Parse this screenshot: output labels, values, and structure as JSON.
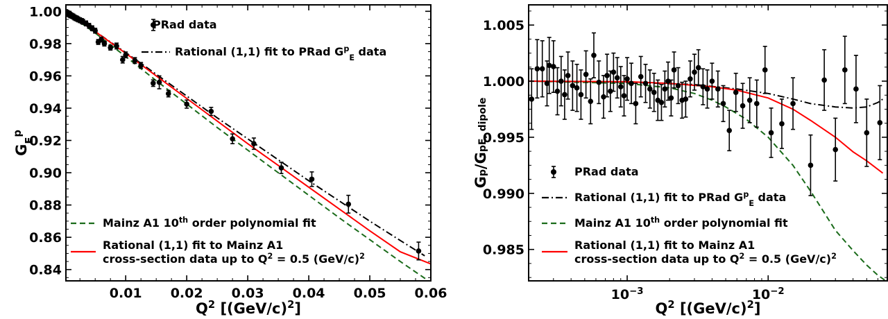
{
  "chart_data": [
    {
      "type": "scatter",
      "xlabel": "Q² [(GeV/c)²]",
      "ylabel": "G_E^p",
      "xscale": "linear",
      "xlim": [
        0.0002,
        0.06
      ],
      "ylim": [
        0.833,
        1.004
      ],
      "xticks": [
        {
          "v": 0.01,
          "label": "0.01"
        },
        {
          "v": 0.02,
          "label": "0.02"
        },
        {
          "v": 0.03,
          "label": "0.03"
        },
        {
          "v": 0.04,
          "label": "0.04"
        },
        {
          "v": 0.05,
          "label": "0.05"
        },
        {
          "v": 0.06,
          "label": "0.06"
        }
      ],
      "yticks": [
        {
          "v": 0.84,
          "label": "0.84"
        },
        {
          "v": 0.86,
          "label": "0.86"
        },
        {
          "v": 0.88,
          "label": "0.88"
        },
        {
          "v": 0.9,
          "label": "0.90"
        },
        {
          "v": 0.92,
          "label": "0.92"
        },
        {
          "v": 0.94,
          "label": "0.94"
        },
        {
          "v": 0.96,
          "label": "0.96"
        },
        {
          "v": 0.98,
          "label": "0.98"
        },
        {
          "v": 1.0,
          "label": "1.00"
        }
      ],
      "legend": [
        {
          "label": "PRad data",
          "style": "points",
          "position": "top-right"
        },
        {
          "label": "Rational (1,1) fit to PRad G_E^p data",
          "style": "dashdot",
          "color": "#000000"
        },
        {
          "label": "Mainz A1 10th order polynomial fit",
          "style": "dashed",
          "color": "#1a6b1a"
        },
        {
          "label": "Rational (1,1) fit to Mainz A1 cross-section data up to Q² = 0.5 (GeV/c)²",
          "style": "solid",
          "color": "#ff0000"
        }
      ],
      "series": [
        {
          "name": "PRad data",
          "kind": "points",
          "points": [
            {
              "x": 0.0002,
              "y": 0.9995,
              "e": 0.0015
            },
            {
              "x": 0.0003,
              "y": 0.9992,
              "e": 0.0015
            },
            {
              "x": 0.0004,
              "y": 0.999,
              "e": 0.0015
            },
            {
              "x": 0.0005,
              "y": 0.9988,
              "e": 0.0015
            },
            {
              "x": 0.0006,
              "y": 0.9985,
              "e": 0.0015
            },
            {
              "x": 0.0007,
              "y": 0.9982,
              "e": 0.0015
            },
            {
              "x": 0.0008,
              "y": 0.998,
              "e": 0.0015
            },
            {
              "x": 0.0009,
              "y": 0.9978,
              "e": 0.0015
            },
            {
              "x": 0.001,
              "y": 0.9975,
              "e": 0.0015
            },
            {
              "x": 0.0012,
              "y": 0.9972,
              "e": 0.0015
            },
            {
              "x": 0.0014,
              "y": 0.9968,
              "e": 0.0015
            },
            {
              "x": 0.0016,
              "y": 0.9962,
              "e": 0.0015
            },
            {
              "x": 0.0018,
              "y": 0.9958,
              "e": 0.0015
            },
            {
              "x": 0.002,
              "y": 0.9955,
              "e": 0.0015
            },
            {
              "x": 0.0022,
              "y": 0.995,
              "e": 0.0015
            },
            {
              "x": 0.0025,
              "y": 0.9945,
              "e": 0.0015
            },
            {
              "x": 0.0028,
              "y": 0.994,
              "e": 0.0015
            },
            {
              "x": 0.003,
              "y": 0.9935,
              "e": 0.0015
            },
            {
              "x": 0.0035,
              "y": 0.9925,
              "e": 0.0015
            },
            {
              "x": 0.004,
              "y": 0.991,
              "e": 0.0015
            },
            {
              "x": 0.0045,
              "y": 0.9895,
              "e": 0.0015
            },
            {
              "x": 0.005,
              "y": 0.988,
              "e": 0.0015
            },
            {
              "x": 0.0055,
              "y": 0.981,
              "e": 0.0015
            },
            {
              "x": 0.006,
              "y": 0.9825,
              "e": 0.0015
            },
            {
              "x": 0.0065,
              "y": 0.98,
              "e": 0.0015
            },
            {
              "x": 0.0075,
              "y": 0.9775,
              "e": 0.0015
            },
            {
              "x": 0.0085,
              "y": 0.9785,
              "e": 0.0018
            },
            {
              "x": 0.0095,
              "y": 0.97,
              "e": 0.002
            },
            {
              "x": 0.01,
              "y": 0.973,
              "e": 0.0018
            },
            {
              "x": 0.0115,
              "y": 0.9695,
              "e": 0.0018
            },
            {
              "x": 0.0125,
              "y": 0.9665,
              "e": 0.0018
            },
            {
              "x": 0.0145,
              "y": 0.9555,
              "e": 0.002
            },
            {
              "x": 0.0155,
              "y": 0.956,
              "e": 0.004
            },
            {
              "x": 0.017,
              "y": 0.949,
              "e": 0.002
            },
            {
              "x": 0.02,
              "y": 0.9425,
              "e": 0.0025
            },
            {
              "x": 0.024,
              "y": 0.938,
              "e": 0.0025
            },
            {
              "x": 0.0275,
              "y": 0.921,
              "e": 0.003
            },
            {
              "x": 0.031,
              "y": 0.918,
              "e": 0.0035
            },
            {
              "x": 0.0355,
              "y": 0.903,
              "e": 0.0035
            },
            {
              "x": 0.0405,
              "y": 0.896,
              "e": 0.0045
            },
            {
              "x": 0.0465,
              "y": 0.8805,
              "e": 0.0055
            },
            {
              "x": 0.058,
              "y": 0.8515,
              "e": 0.0055
            }
          ]
        },
        {
          "name": "Rational (1,1) fit to PRad G_E^p data",
          "kind": "line",
          "style": "dashdot",
          "color": "#000000",
          "x": [
            0.0002,
            0.005,
            0.01,
            0.015,
            0.02,
            0.025,
            0.03,
            0.035,
            0.04,
            0.045,
            0.05,
            0.055,
            0.059
          ],
          "y": [
            0.9995,
            0.9875,
            0.9745,
            0.961,
            0.9475,
            0.934,
            0.921,
            0.908,
            0.895,
            0.8825,
            0.87,
            0.858,
            0.8485
          ]
        },
        {
          "name": "Mainz A1 10th order polynomial fit",
          "kind": "line",
          "style": "dashed",
          "color": "#1a6b1a",
          "x": [
            0.0002,
            0.005,
            0.01,
            0.015,
            0.02,
            0.025,
            0.03,
            0.035,
            0.04,
            0.045,
            0.05,
            0.055,
            0.06
          ],
          "y": [
            0.9995,
            0.9865,
            0.972,
            0.957,
            0.9425,
            0.928,
            0.914,
            0.9,
            0.886,
            0.872,
            0.8585,
            0.845,
            0.832
          ]
        },
        {
          "name": "Rational (1,1) fit to Mainz A1 cross-section data up to Q² = 0.5 (GeV/c)²",
          "kind": "line",
          "style": "solid",
          "color": "#ff0000",
          "x": [
            0.0002,
            0.005,
            0.01,
            0.015,
            0.02,
            0.025,
            0.03,
            0.035,
            0.04,
            0.045,
            0.05,
            0.055,
            0.06
          ],
          "y": [
            0.9995,
            0.9875,
            0.974,
            0.96,
            0.946,
            0.932,
            0.918,
            0.9045,
            0.891,
            0.8775,
            0.864,
            0.851,
            0.8435
          ]
        }
      ]
    },
    {
      "type": "scatter",
      "xlabel": "Q² [(GeV/c)²]",
      "ylabel": "G_E^p / G_E,dipole^p",
      "xscale": "log",
      "xlim": [
        0.0002,
        0.07
      ],
      "ylim": [
        0.9822,
        1.0068
      ],
      "xticks": [
        {
          "v": 0.001,
          "label": "10⁻³",
          "base": "10",
          "exp": "−3"
        },
        {
          "v": 0.01,
          "label": "10⁻²",
          "base": "10",
          "exp": "−2"
        }
      ],
      "yticks": [
        {
          "v": 0.985,
          "label": "0.985"
        },
        {
          "v": 0.99,
          "label": "0.990"
        },
        {
          "v": 0.995,
          "label": "0.995"
        },
        {
          "v": 1.0,
          "label": "1.000"
        },
        {
          "v": 1.005,
          "label": "1.005"
        }
      ],
      "legend": [
        {
          "label": "PRad data",
          "style": "points",
          "position": "lower-left"
        },
        {
          "label": "Rational (1,1) fit to PRad G_E^p data",
          "style": "dashdot",
          "color": "#000000"
        },
        {
          "label": "Mainz A1 10th order polynomial fit",
          "style": "dashed",
          "color": "#1a6b1a"
        },
        {
          "label": "Rational (1,1) fit to Mainz A1 cross-section data up to Q² = 0.5 (GeV/c)²",
          "style": "solid",
          "color": "#ff0000"
        }
      ],
      "series": [
        {
          "name": "PRad data",
          "kind": "points",
          "points": [
            {
              "x": 0.00021,
              "y": 0.9984,
              "e": 0.0027
            },
            {
              "x": 0.00023,
              "y": 1.0011,
              "e": 0.0026
            },
            {
              "x": 0.00025,
              "y": 1.0011,
              "e": 0.0025
            },
            {
              "x": 0.00027,
              "y": 0.9998,
              "e": 0.002
            },
            {
              "x": 0.00028,
              "y": 1.0014,
              "e": 0.0025
            },
            {
              "x": 0.0003,
              "y": 1.0013,
              "e": 0.0023
            },
            {
              "x": 0.00032,
              "y": 0.9991,
              "e": 0.0021
            },
            {
              "x": 0.00034,
              "y": 1.0,
              "e": 0.0022
            },
            {
              "x": 0.00036,
              "y": 0.9988,
              "e": 0.0022
            },
            {
              "x": 0.00038,
              "y": 1.0005,
              "e": 0.0021
            },
            {
              "x": 0.00041,
              "y": 0.9996,
              "e": 0.0022
            },
            {
              "x": 0.00044,
              "y": 0.9994,
              "e": 0.0021
            },
            {
              "x": 0.00047,
              "y": 0.9988,
              "e": 0.0022
            },
            {
              "x": 0.00051,
              "y": 1.0006,
              "e": 0.0021
            },
            {
              "x": 0.00055,
              "y": 0.9982,
              "e": 0.002
            },
            {
              "x": 0.00058,
              "y": 1.0023,
              "e": 0.002
            },
            {
              "x": 0.00063,
              "y": 0.9999,
              "e": 0.0019
            },
            {
              "x": 0.00068,
              "y": 0.9986,
              "e": 0.0019
            },
            {
              "x": 0.00072,
              "y": 1.0005,
              "e": 0.0019
            },
            {
              "x": 0.00076,
              "y": 0.9991,
              "e": 0.0018
            },
            {
              "x": 0.0008,
              "y": 1.0008,
              "e": 0.0017
            },
            {
              "x": 0.00085,
              "y": 1.0003,
              "e": 0.0018
            },
            {
              "x": 0.0009,
              "y": 0.9995,
              "e": 0.0018
            },
            {
              "x": 0.00095,
              "y": 0.9987,
              "e": 0.0018
            },
            {
              "x": 0.001,
              "y": 1.0002,
              "e": 0.0019
            },
            {
              "x": 0.00107,
              "y": 0.9998,
              "e": 0.0018
            },
            {
              "x": 0.00115,
              "y": 0.998,
              "e": 0.0018
            },
            {
              "x": 0.00125,
              "y": 1.0004,
              "e": 0.0018
            },
            {
              "x": 0.00135,
              "y": 0.9998,
              "e": 0.0017
            },
            {
              "x": 0.00145,
              "y": 0.9993,
              "e": 0.0017
            },
            {
              "x": 0.00155,
              "y": 0.999,
              "e": 0.0017
            },
            {
              "x": 0.00165,
              "y": 0.9983,
              "e": 0.0018
            },
            {
              "x": 0.00175,
              "y": 0.9981,
              "e": 0.0016
            },
            {
              "x": 0.00185,
              "y": 0.9993,
              "e": 0.0016
            },
            {
              "x": 0.00195,
              "y": 1.0,
              "e": 0.0017
            },
            {
              "x": 0.00205,
              "y": 0.9985,
              "e": 0.0016
            },
            {
              "x": 0.00215,
              "y": 1.001,
              "e": 0.0016
            },
            {
              "x": 0.0023,
              "y": 0.9996,
              "e": 0.0016
            },
            {
              "x": 0.00245,
              "y": 0.9983,
              "e": 0.0016
            },
            {
              "x": 0.0026,
              "y": 0.9984,
              "e": 0.0016
            },
            {
              "x": 0.0028,
              "y": 1.0002,
              "e": 0.0016
            },
            {
              "x": 0.003,
              "y": 1.0008,
              "e": 0.0016
            },
            {
              "x": 0.0032,
              "y": 1.0012,
              "e": 0.0016
            },
            {
              "x": 0.00345,
              "y": 0.9995,
              "e": 0.0016
            },
            {
              "x": 0.0037,
              "y": 0.9993,
              "e": 0.0017
            },
            {
              "x": 0.004,
              "y": 1.0,
              "e": 0.0016
            },
            {
              "x": 0.0044,
              "y": 0.9993,
              "e": 0.0016
            },
            {
              "x": 0.0048,
              "y": 0.998,
              "e": 0.0016
            },
            {
              "x": 0.0053,
              "y": 0.9956,
              "e": 0.0018
            },
            {
              "x": 0.0059,
              "y": 0.999,
              "e": 0.0017
            },
            {
              "x": 0.0066,
              "y": 0.9978,
              "e": 0.002
            },
            {
              "x": 0.0074,
              "y": 0.9983,
              "e": 0.002
            },
            {
              "x": 0.0083,
              "y": 0.998,
              "e": 0.0021
            },
            {
              "x": 0.0095,
              "y": 1.001,
              "e": 0.0021
            },
            {
              "x": 0.0105,
              "y": 0.9954,
              "e": 0.0022
            },
            {
              "x": 0.0125,
              "y": 0.9962,
              "e": 0.0022
            },
            {
              "x": 0.015,
              "y": 0.998,
              "e": 0.0023
            },
            {
              "x": 0.02,
              "y": 0.9925,
              "e": 0.0027
            },
            {
              "x": 0.025,
              "y": 1.0001,
              "e": 0.0027
            },
            {
              "x": 0.03,
              "y": 0.9939,
              "e": 0.0028
            },
            {
              "x": 0.035,
              "y": 1.001,
              "e": 0.003
            },
            {
              "x": 0.042,
              "y": 0.9993,
              "e": 0.003
            },
            {
              "x": 0.05,
              "y": 0.9954,
              "e": 0.003
            },
            {
              "x": 0.062,
              "y": 0.9963,
              "e": 0.0033
            }
          ]
        },
        {
          "name": "Rational (1,1) fit to PRad G_E^p data",
          "kind": "line",
          "style": "dashdot",
          "color": "#000000",
          "x": [
            0.0002,
            0.001,
            0.003,
            0.006,
            0.01,
            0.015,
            0.02,
            0.03,
            0.04,
            0.05,
            0.06,
            0.065
          ],
          "y": [
            1.0,
            0.9999,
            0.9997,
            0.9993,
            0.9989,
            0.9984,
            0.998,
            0.9977,
            0.9976,
            0.9977,
            0.9981,
            0.9984
          ]
        },
        {
          "name": "Mainz A1 10th order polynomial fit",
          "kind": "line",
          "style": "dashed",
          "color": "#1a6b1a",
          "x": [
            0.0002,
            0.001,
            0.002,
            0.003,
            0.004,
            0.005,
            0.007,
            0.01,
            0.015,
            0.02,
            0.03,
            0.04,
            0.05,
            0.06,
            0.07
          ],
          "y": [
            1.0,
            0.9998,
            0.9994,
            0.9989,
            0.9983,
            0.9977,
            0.9966,
            0.995,
            0.9925,
            0.9902,
            0.9867,
            0.9849,
            0.9836,
            0.9827,
            0.9821
          ]
        },
        {
          "name": "Rational (1,1) fit to Mainz A1 cross-section data up to Q² = 0.5 (GeV/c)²",
          "kind": "line",
          "style": "solid",
          "color": "#ff0000",
          "x": [
            0.0002,
            0.001,
            0.002,
            0.004,
            0.006,
            0.01,
            0.015,
            0.02,
            0.03,
            0.04,
            0.05,
            0.065
          ],
          "y": [
            1.0,
            0.99995,
            0.9998,
            0.9995,
            0.9992,
            0.9985,
            0.9975,
            0.9965,
            0.995,
            0.9937,
            0.9929,
            0.9918
          ]
        }
      ]
    }
  ]
}
